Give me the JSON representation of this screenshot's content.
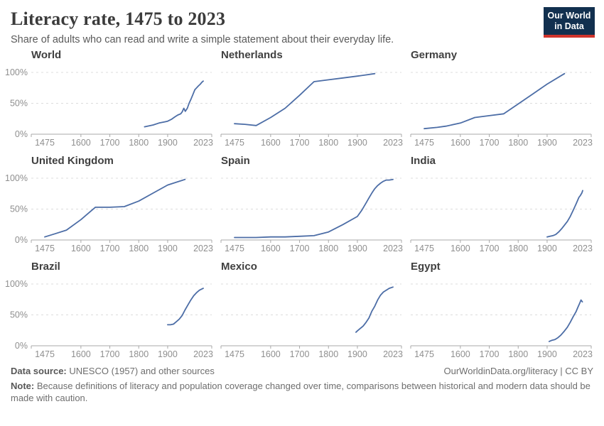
{
  "header": {
    "title": "Literacy rate, 1475 to 2023",
    "subtitle": "Share of adults who can read and write a simple statement about their everyday life.",
    "logo": {
      "line1": "Our World",
      "line2": "in Data"
    }
  },
  "chart_data": {
    "type": "line",
    "title": "Literacy rate, 1475 to 2023",
    "unit": "%",
    "x_domain": [
      1475,
      2023
    ],
    "ylim": [
      0,
      100
    ],
    "yticks": [
      {
        "value": 0,
        "label": "0%"
      },
      {
        "value": 50,
        "label": "50%"
      },
      {
        "value": 100,
        "label": "100%"
      }
    ],
    "xticks": [
      1475,
      1600,
      1700,
      1800,
      1900,
      2023
    ],
    "grid": "dashed horizontal gridlines at 50% and 100%; y-axis labels on left column only",
    "layout": "3x3 small multiples",
    "facets": [
      {
        "title": "World",
        "points": [
          [
            1820,
            12
          ],
          [
            1850,
            15
          ],
          [
            1870,
            18
          ],
          [
            1890,
            20
          ],
          [
            1900,
            21
          ],
          [
            1913,
            24
          ],
          [
            1925,
            28
          ],
          [
            1935,
            31
          ],
          [
            1945,
            33
          ],
          [
            1950,
            36
          ],
          [
            1956,
            42
          ],
          [
            1961,
            37
          ],
          [
            1968,
            42
          ],
          [
            1974,
            50
          ],
          [
            1980,
            56
          ],
          [
            1987,
            64
          ],
          [
            1994,
            72
          ],
          [
            2000,
            75
          ],
          [
            2006,
            78
          ],
          [
            2013,
            81
          ],
          [
            2018,
            84
          ],
          [
            2023,
            86
          ]
        ]
      },
      {
        "title": "Netherlands",
        "points": [
          [
            1475,
            17
          ],
          [
            1511,
            16
          ],
          [
            1550,
            14
          ],
          [
            1600,
            27
          ],
          [
            1650,
            42
          ],
          [
            1700,
            63
          ],
          [
            1750,
            85
          ],
          [
            1800,
            88
          ],
          [
            1850,
            91
          ],
          [
            1900,
            94
          ],
          [
            1930,
            96
          ],
          [
            1960,
            98
          ]
        ]
      },
      {
        "title": "Germany",
        "points": [
          [
            1475,
            9
          ],
          [
            1520,
            11
          ],
          [
            1550,
            13
          ],
          [
            1600,
            18
          ],
          [
            1650,
            27
          ],
          [
            1700,
            30
          ],
          [
            1750,
            33
          ],
          [
            1800,
            49
          ],
          [
            1850,
            65
          ],
          [
            1900,
            81
          ],
          [
            1960,
            98
          ]
        ]
      },
      {
        "title": "United Kingdom",
        "points": [
          [
            1475,
            5
          ],
          [
            1510,
            10
          ],
          [
            1550,
            16
          ],
          [
            1600,
            33
          ],
          [
            1650,
            53
          ],
          [
            1700,
            53
          ],
          [
            1750,
            54
          ],
          [
            1800,
            63
          ],
          [
            1850,
            76
          ],
          [
            1900,
            89
          ],
          [
            1960,
            98
          ]
        ]
      },
      {
        "title": "Spain",
        "points": [
          [
            1475,
            4
          ],
          [
            1550,
            4
          ],
          [
            1600,
            5
          ],
          [
            1650,
            5
          ],
          [
            1700,
            6
          ],
          [
            1750,
            7
          ],
          [
            1800,
            13
          ],
          [
            1850,
            25
          ],
          [
            1900,
            38
          ],
          [
            1915,
            48
          ],
          [
            1930,
            60
          ],
          [
            1940,
            68
          ],
          [
            1950,
            76
          ],
          [
            1960,
            83
          ],
          [
            1970,
            88
          ],
          [
            1980,
            92
          ],
          [
            1990,
            95
          ],
          [
            2000,
            97
          ],
          [
            2010,
            97
          ],
          [
            2023,
            98
          ]
        ]
      },
      {
        "title": "India",
        "points": [
          [
            1900,
            5
          ],
          [
            1910,
            6
          ],
          [
            1920,
            7
          ],
          [
            1930,
            9
          ],
          [
            1940,
            13
          ],
          [
            1950,
            18
          ],
          [
            1960,
            24
          ],
          [
            1970,
            30
          ],
          [
            1980,
            38
          ],
          [
            1990,
            48
          ],
          [
            2000,
            58
          ],
          [
            2010,
            69
          ],
          [
            2015,
            72
          ],
          [
            2020,
            76
          ],
          [
            2023,
            80
          ]
        ]
      },
      {
        "title": "Brazil",
        "points": [
          [
            1900,
            34
          ],
          [
            1910,
            34
          ],
          [
            1920,
            35
          ],
          [
            1930,
            39
          ],
          [
            1940,
            43
          ],
          [
            1950,
            49
          ],
          [
            1960,
            58
          ],
          [
            1970,
            66
          ],
          [
            1980,
            74
          ],
          [
            1990,
            81
          ],
          [
            2000,
            86
          ],
          [
            2010,
            90
          ],
          [
            2023,
            93
          ]
        ]
      },
      {
        "title": "Mexico",
        "points": [
          [
            1895,
            22
          ],
          [
            1900,
            24
          ],
          [
            1910,
            28
          ],
          [
            1920,
            32
          ],
          [
            1930,
            38
          ],
          [
            1940,
            45
          ],
          [
            1950,
            56
          ],
          [
            1960,
            64
          ],
          [
            1970,
            74
          ],
          [
            1980,
            82
          ],
          [
            1990,
            87
          ],
          [
            2000,
            90
          ],
          [
            2010,
            93
          ],
          [
            2023,
            95
          ]
        ]
      },
      {
        "title": "Egypt",
        "points": [
          [
            1907,
            7
          ],
          [
            1917,
            9
          ],
          [
            1927,
            10
          ],
          [
            1937,
            13
          ],
          [
            1947,
            17
          ],
          [
            1960,
            24
          ],
          [
            1970,
            30
          ],
          [
            1980,
            38
          ],
          [
            1990,
            47
          ],
          [
            2000,
            55
          ],
          [
            2006,
            62
          ],
          [
            2012,
            68
          ],
          [
            2017,
            74
          ],
          [
            2022,
            71
          ]
        ]
      }
    ],
    "colors": {
      "line": "#4c6da6",
      "gridline": "#dcdcdc",
      "axis": "#a8a8a8",
      "tick_label": "#8f8f8f"
    }
  },
  "footer": {
    "data_source_label": "Data source:",
    "data_source_value": " UNESCO (1957) and other sources",
    "link": "OurWorldinData.org/literacy | CC BY",
    "note_label": "Note:",
    "note_text": " Because definitions of literacy and population coverage changed over time, comparisons between historical and modern data should be made with caution."
  },
  "colors": {
    "logo_navy": "#12304f",
    "logo_red": "#d0342c",
    "title_text": "#3b3b3b"
  }
}
